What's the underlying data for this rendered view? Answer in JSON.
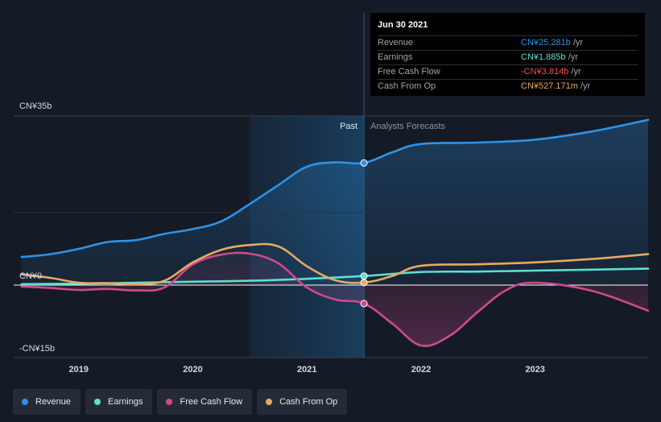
{
  "chart_data": {
    "type": "line",
    "x_ticks": [
      "2019",
      "2020",
      "2021",
      "2022",
      "2023"
    ],
    "y_labels": {
      "top": "CN¥35b",
      "zero": "CN¥0",
      "bottom": "-CN¥15b"
    },
    "ylim": [
      -15,
      35
    ],
    "past_label": "Past",
    "forecast_label": "Analysts Forecasts",
    "highlight_x": 2021.5,
    "series": [
      {
        "name": "Revenue",
        "color": "#2e93e6",
        "points": [
          [
            2018.5,
            5.8
          ],
          [
            2018.75,
            6.4
          ],
          [
            2019.0,
            7.5
          ],
          [
            2019.25,
            8.9
          ],
          [
            2019.5,
            9.3
          ],
          [
            2019.75,
            10.6
          ],
          [
            2020.0,
            11.6
          ],
          [
            2020.25,
            13.2
          ],
          [
            2020.5,
            16.8
          ],
          [
            2020.75,
            20.7
          ],
          [
            2021.0,
            24.5
          ],
          [
            2021.25,
            25.4
          ],
          [
            2021.5,
            25.28
          ],
          [
            2021.75,
            27.5
          ],
          [
            2022.0,
            29.2
          ],
          [
            2022.5,
            29.5
          ],
          [
            2023.0,
            30.1
          ],
          [
            2023.5,
            31.8
          ],
          [
            2023.99,
            34.2
          ]
        ]
      },
      {
        "name": "Earnings",
        "color": "#5ce0cf",
        "points": [
          [
            2018.5,
            0.2
          ],
          [
            2019.0,
            0.3
          ],
          [
            2019.5,
            0.5
          ],
          [
            2020.0,
            0.7
          ],
          [
            2020.5,
            0.9
          ],
          [
            2021.0,
            1.3
          ],
          [
            2021.5,
            1.885
          ],
          [
            2022.0,
            2.7
          ],
          [
            2022.5,
            2.8
          ],
          [
            2023.0,
            3.0
          ],
          [
            2023.5,
            3.2
          ],
          [
            2023.99,
            3.4
          ]
        ]
      },
      {
        "name": "Free Cash Flow",
        "color": "#cf4a8b",
        "points": [
          [
            2018.5,
            -0.3
          ],
          [
            2018.75,
            -0.6
          ],
          [
            2019.0,
            -1.0
          ],
          [
            2019.25,
            -0.8
          ],
          [
            2019.5,
            -1.1
          ],
          [
            2019.75,
            -0.5
          ],
          [
            2020.0,
            4.3
          ],
          [
            2020.25,
            6.3
          ],
          [
            2020.5,
            6.5
          ],
          [
            2020.75,
            4.5
          ],
          [
            2021.0,
            -0.5
          ],
          [
            2021.25,
            -3.0
          ],
          [
            2021.5,
            -3.814
          ],
          [
            2021.75,
            -8.0
          ],
          [
            2022.0,
            -12.5
          ],
          [
            2022.25,
            -10.5
          ],
          [
            2022.5,
            -5.5
          ],
          [
            2022.75,
            -1.0
          ],
          [
            2023.0,
            0.5
          ],
          [
            2023.5,
            -1.2
          ],
          [
            2023.99,
            -5.3
          ]
        ]
      },
      {
        "name": "Cash From Op",
        "color": "#e6aa62",
        "points": [
          [
            2018.5,
            2.2
          ],
          [
            2018.75,
            1.5
          ],
          [
            2019.0,
            0.5
          ],
          [
            2019.25,
            0.4
          ],
          [
            2019.5,
            0.2
          ],
          [
            2019.75,
            0.9
          ],
          [
            2020.0,
            4.7
          ],
          [
            2020.25,
            7.3
          ],
          [
            2020.5,
            8.3
          ],
          [
            2020.75,
            8.0
          ],
          [
            2021.0,
            3.9
          ],
          [
            2021.25,
            1.0
          ],
          [
            2021.5,
            0.527
          ],
          [
            2021.75,
            1.9
          ],
          [
            2022.0,
            4.0
          ],
          [
            2022.5,
            4.3
          ],
          [
            2023.0,
            4.7
          ],
          [
            2023.5,
            5.4
          ],
          [
            2023.99,
            6.4
          ]
        ]
      }
    ]
  },
  "tooltip": {
    "date": "Jun 30 2021",
    "rows": [
      {
        "label": "Revenue",
        "value": "CN¥25.281b",
        "unit": " /yr",
        "color": "#2e93e6"
      },
      {
        "label": "Earnings",
        "value": "CN¥1.885b",
        "unit": " /yr",
        "color": "#5ce0cf"
      },
      {
        "label": "Free Cash Flow",
        "value": "-CN¥3.814b",
        "unit": " /yr",
        "color": "#ff4b4b"
      },
      {
        "label": "Cash From Op",
        "value": "CN¥527.171m",
        "unit": " /yr",
        "color": "#e6aa62"
      }
    ]
  },
  "legend": [
    {
      "label": "Revenue",
      "color": "#2e93e6"
    },
    {
      "label": "Earnings",
      "color": "#5ce0cf"
    },
    {
      "label": "Free Cash Flow",
      "color": "#cf4a8b"
    },
    {
      "label": "Cash From Op",
      "color": "#e6aa62"
    }
  ]
}
